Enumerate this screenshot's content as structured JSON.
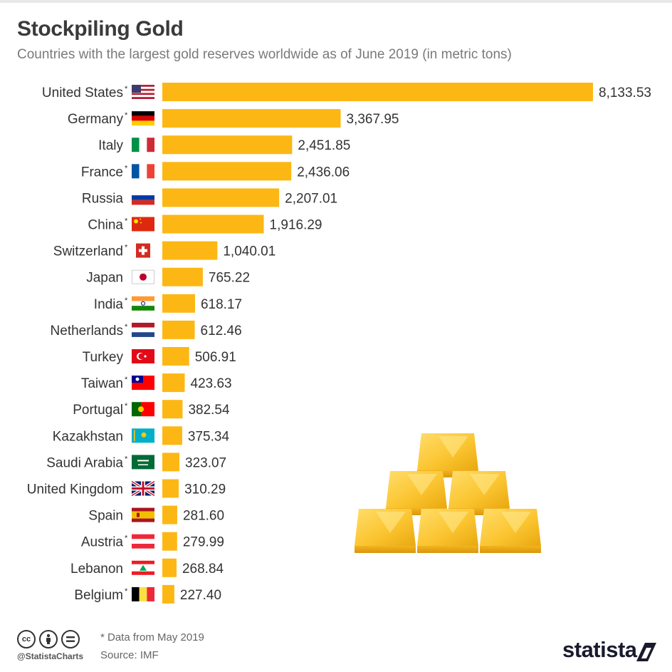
{
  "title": "Stockpiling Gold",
  "subtitle": "Countries with the largest gold reserves worldwide as of June 2019 (in metric tons)",
  "chart_data": {
    "type": "bar",
    "orientation": "horizontal",
    "title": "Stockpiling Gold",
    "subtitle": "Countries with the largest gold reserves worldwide as of June 2019 (in metric tons)",
    "xlabel": "",
    "ylabel": "",
    "xlim": [
      0,
      8133.53
    ],
    "bar_color": "#fdb714",
    "categories": [
      "United States",
      "Germany",
      "Italy",
      "France",
      "Russia",
      "China",
      "Switzerland",
      "Japan",
      "India",
      "Netherlands",
      "Turkey",
      "Taiwan",
      "Portugal",
      "Kazakhstan",
      "Saudi Arabia",
      "United Kingdom",
      "Spain",
      "Austria",
      "Lebanon",
      "Belgium"
    ],
    "values": [
      8133.53,
      3367.95,
      2451.85,
      2436.06,
      2207.01,
      1916.29,
      1040.01,
      765.22,
      618.17,
      612.46,
      506.91,
      423.63,
      382.54,
      375.34,
      323.07,
      310.29,
      281.6,
      279.99,
      268.84,
      227.4
    ],
    "value_labels": [
      "8,133.53",
      "3,367.95",
      "2,451.85",
      "2,436.06",
      "2,207.01",
      "1,916.29",
      "1,040.01",
      "765.22",
      "618.17",
      "612.46",
      "506.91",
      "423.63",
      "382.54",
      "375.34",
      "323.07",
      "310.29",
      "281.60",
      "279.99",
      "268.84",
      "227.40"
    ],
    "asterisk": [
      true,
      true,
      false,
      true,
      false,
      true,
      true,
      false,
      true,
      true,
      false,
      true,
      true,
      false,
      true,
      false,
      false,
      true,
      false,
      true
    ],
    "flags": [
      "us-flag-icon",
      "germany-flag-icon",
      "italy-flag-icon",
      "france-flag-icon",
      "russia-flag-icon",
      "china-flag-icon",
      "switzerland-flag-icon",
      "japan-flag-icon",
      "india-flag-icon",
      "netherlands-flag-icon",
      "turkey-flag-icon",
      "taiwan-flag-icon",
      "portugal-flag-icon",
      "kazakhstan-flag-icon",
      "saudi-arabia-flag-icon",
      "uk-flag-icon",
      "spain-flag-icon",
      "austria-flag-icon",
      "lebanon-flag-icon",
      "belgium-flag-icon"
    ]
  },
  "illustration": "gold-bars-icon",
  "footer": {
    "handle": "@StatistaCharts",
    "note": "* Data from May 2019",
    "source": "Source: IMF",
    "brand": "statista"
  }
}
